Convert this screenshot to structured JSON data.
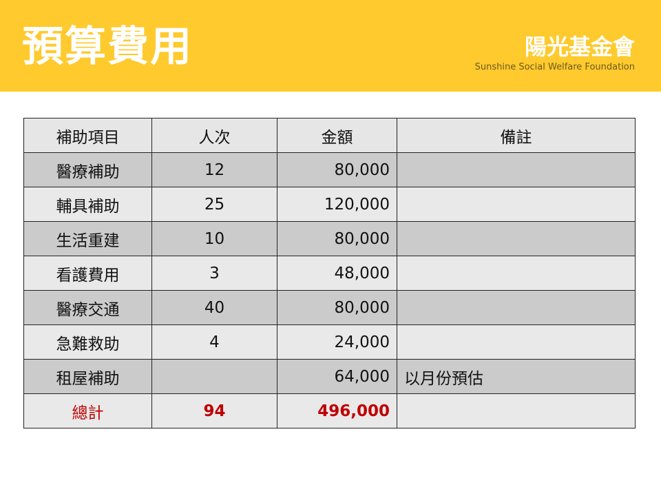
{
  "colors": {
    "accent": "#FFCA2E",
    "total": "#C00000"
  },
  "header": {
    "title": "預算費用",
    "org_name": "陽光基金會",
    "org_name_en": "Sunshine Social Welfare Foundation"
  },
  "table": {
    "columns": [
      "補助項目",
      "人次",
      "金額",
      "備註"
    ],
    "rows": [
      {
        "item": "醫療補助",
        "count": "12",
        "amount": "80,000",
        "note": ""
      },
      {
        "item": "輔具補助",
        "count": "25",
        "amount": "120,000",
        "note": ""
      },
      {
        "item": "生活重建",
        "count": "10",
        "amount": "80,000",
        "note": ""
      },
      {
        "item": "看護費用",
        "count": "3",
        "amount": "48,000",
        "note": ""
      },
      {
        "item": "醫療交通",
        "count": "40",
        "amount": "80,000",
        "note": ""
      },
      {
        "item": "急難救助",
        "count": "4",
        "amount": "24,000",
        "note": ""
      },
      {
        "item": "租屋補助",
        "count": "",
        "amount": "64,000",
        "note": "以月份預估"
      }
    ],
    "total": {
      "item": "總計",
      "count": "94",
      "amount": "496,000",
      "note": ""
    }
  }
}
